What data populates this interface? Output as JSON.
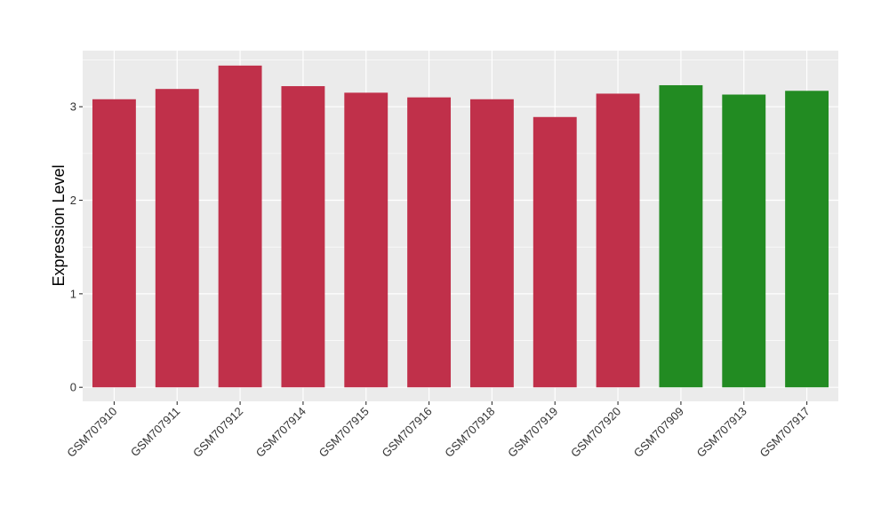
{
  "chart_data": {
    "type": "bar",
    "title": "",
    "xlabel": "",
    "ylabel": "Expression Level",
    "ylim": [
      -0.15,
      3.6
    ],
    "yticks": [
      0,
      1,
      2,
      3
    ],
    "grid": true,
    "legend": "none",
    "categories": [
      "GSM707910",
      "GSM707911",
      "GSM707912",
      "GSM707914",
      "GSM707915",
      "GSM707916",
      "GSM707918",
      "GSM707919",
      "GSM707920",
      "GSM707909",
      "GSM707913",
      "GSM707917"
    ],
    "values": [
      3.08,
      3.19,
      3.44,
      3.22,
      3.15,
      3.1,
      3.08,
      2.89,
      3.14,
      3.23,
      3.13,
      3.17
    ],
    "bar_colors": [
      "#c0304a",
      "#c0304a",
      "#c0304a",
      "#c0304a",
      "#c0304a",
      "#c0304a",
      "#c0304a",
      "#c0304a",
      "#c0304a",
      "#228b22",
      "#228b22",
      "#228b22"
    ],
    "panel_background": "#ebebeb",
    "gridline_color": "#ffffff"
  }
}
